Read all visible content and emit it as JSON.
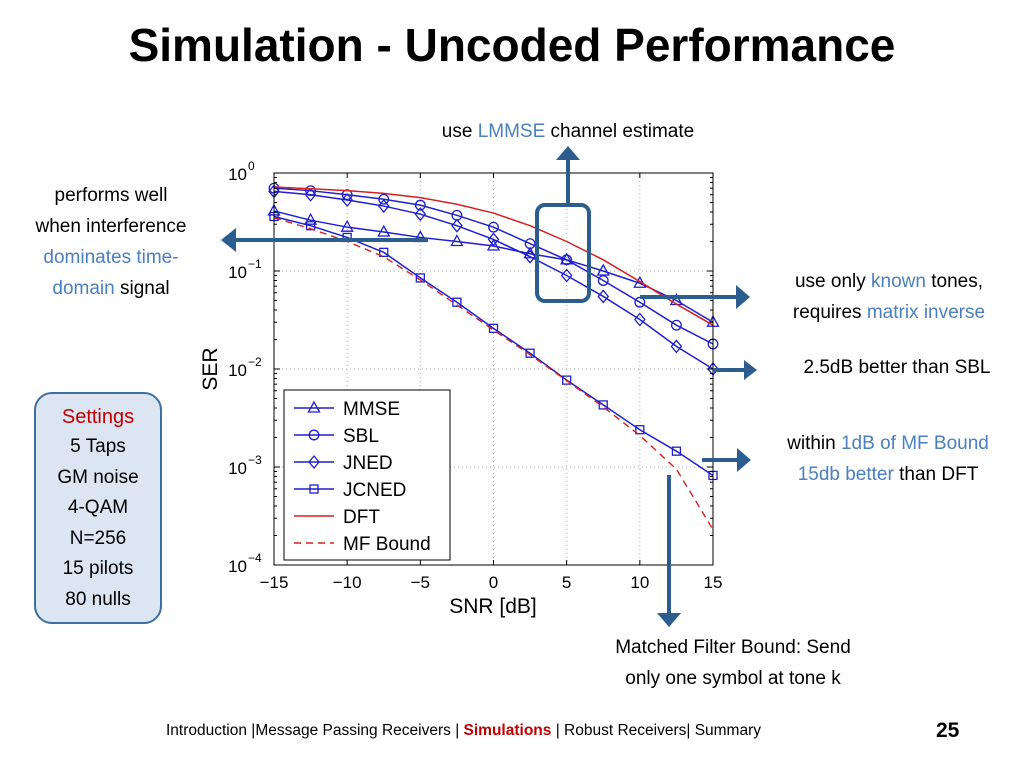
{
  "slide": {
    "title": "Simulation - Uncoded Performance",
    "page_number": "25"
  },
  "notes": {
    "lmmse": {
      "pre": "use ",
      "highlight": "LMMSE",
      "post": " channel estimate"
    },
    "interference": {
      "line1": "performs well",
      "line2": "when interference",
      "line3_highlight": "dominates time-",
      "line4_highlight": "domain",
      "line4_post": " signal"
    },
    "known": {
      "l1_pre": "use only ",
      "l1_highlight": "known",
      "l1_post": " tones,",
      "l2_pre": "requires ",
      "l2_highlight": "matrix inverse"
    },
    "sbl": {
      "text": "2.5dB better than SBL"
    },
    "mfbound": {
      "l1_pre": "within ",
      "l1_highlight": "1dB of MF Bound",
      "l2_highlight": "15db better",
      "l2_post": " than DFT"
    },
    "matched": {
      "line1": "Matched Filter Bound: Send",
      "line2": "only one symbol at tone k"
    }
  },
  "settings": {
    "heading": "Settings",
    "items": [
      "5 Taps",
      "GM noise",
      "4-QAM",
      "N=256",
      "15 pilots",
      "80 nulls"
    ]
  },
  "footer": {
    "before": "Introduction |Message Passing Receivers | ",
    "active": "Simulations",
    "after": " | Robust Receivers| Summary"
  },
  "colors": {
    "series_blue": "#1f1fd0",
    "dft_red": "#d62020",
    "arrow": "#2b5d8f",
    "highlight_box": "#2b5d8f",
    "accent_text": "#4a7fc0",
    "footer_active": "#c00000"
  },
  "chart_data": {
    "type": "line",
    "xlabel": "SNR [dB]",
    "ylabel": "SER",
    "xlim": [
      -15,
      15
    ],
    "ylim": [
      0.0001,
      1
    ],
    "yscale": "log",
    "xticks": [
      -15,
      -10,
      -5,
      0,
      5,
      10,
      15
    ],
    "xtick_labels": [
      "−15",
      "−10",
      "−5",
      "0",
      "5",
      "10",
      "15"
    ],
    "yticks": [
      {
        "value": 1,
        "base": "10",
        "exp": "0"
      },
      {
        "value": 0.1,
        "base": "10",
        "exp": "−1"
      },
      {
        "value": 0.01,
        "base": "10",
        "exp": "−2"
      },
      {
        "value": 0.001,
        "base": "10",
        "exp": "−3"
      },
      {
        "value": 0.0001,
        "base": "10",
        "exp": "−4"
      }
    ],
    "grid": true,
    "legend_position": "bottom-left",
    "series": [
      {
        "name": "MMSE",
        "marker": "triangle",
        "line": "solid",
        "color": "#1f1fd0",
        "x": [
          -15,
          -12.5,
          -10,
          -7.5,
          -5,
          -2.5,
          0,
          2.5,
          5,
          7.5,
          10,
          12.5,
          15
        ],
        "y": [
          0.41,
          0.33,
          0.28,
          0.25,
          0.22,
          0.2,
          0.18,
          0.15,
          0.13,
          0.1,
          0.075,
          0.05,
          0.03
        ]
      },
      {
        "name": "SBL",
        "marker": "circle",
        "line": "solid",
        "color": "#1f1fd0",
        "x": [
          -15,
          -12.5,
          -10,
          -7.5,
          -5,
          -2.5,
          0,
          2.5,
          5,
          7.5,
          10,
          12.5,
          15
        ],
        "y": [
          0.7,
          0.66,
          0.6,
          0.54,
          0.47,
          0.37,
          0.28,
          0.19,
          0.13,
          0.08,
          0.048,
          0.028,
          0.018
        ]
      },
      {
        "name": "JNED",
        "marker": "diamond",
        "line": "solid",
        "color": "#1f1fd0",
        "x": [
          -15,
          -12.5,
          -10,
          -7.5,
          -5,
          -2.5,
          0,
          2.5,
          5,
          7.5,
          10,
          12.5,
          15
        ],
        "y": [
          0.65,
          0.6,
          0.53,
          0.46,
          0.38,
          0.29,
          0.21,
          0.14,
          0.09,
          0.055,
          0.032,
          0.017,
          0.01
        ]
      },
      {
        "name": "JCNED",
        "marker": "square",
        "line": "solid",
        "color": "#1f1fd0",
        "x": [
          -15,
          -12.5,
          -10,
          -7.5,
          -5,
          -2.5,
          0,
          2.5,
          5,
          7.5,
          10,
          12.5,
          15
        ],
        "y": [
          0.36,
          0.29,
          0.22,
          0.155,
          0.085,
          0.048,
          0.026,
          0.0145,
          0.0077,
          0.0043,
          0.0024,
          0.00145,
          0.00082
        ]
      },
      {
        "name": "DFT",
        "marker": "none",
        "line": "solid",
        "color": "#d62020",
        "x": [
          -15,
          -12.5,
          -10,
          -7.5,
          -5,
          -2.5,
          0,
          2.5,
          5,
          7.5,
          10,
          12.5,
          15
        ],
        "y": [
          0.72,
          0.69,
          0.66,
          0.62,
          0.56,
          0.48,
          0.39,
          0.29,
          0.2,
          0.13,
          0.078,
          0.046,
          0.028
        ]
      },
      {
        "name": "MF Bound",
        "marker": "none",
        "line": "dashed",
        "color": "#d62020",
        "x": [
          -15,
          -12.5,
          -10,
          -7.5,
          -5,
          -2.5,
          0,
          2.5,
          5,
          7.5,
          10,
          12.5,
          15
        ],
        "y": [
          0.35,
          0.27,
          0.2,
          0.14,
          0.081,
          0.045,
          0.025,
          0.014,
          0.0076,
          0.0041,
          0.0021,
          0.00095,
          0.00023
        ]
      }
    ]
  }
}
